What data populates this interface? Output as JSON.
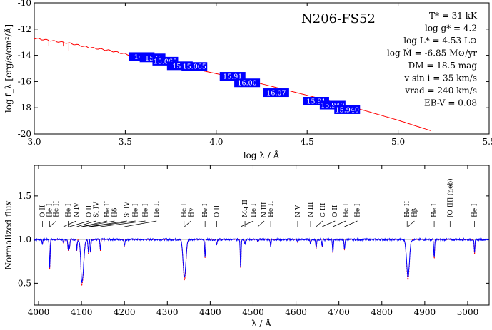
{
  "chart_data": [
    {
      "type": "line",
      "star_name": "N206-FS52",
      "xlabel": "log λ / Å",
      "ylabel": "log f_λ [erg/s/cm²/Å]",
      "xlim": [
        3.0,
        5.5
      ],
      "ylim": [
        -20,
        -10
      ],
      "x_ticks": [
        "3.0",
        "3.5",
        "4.0",
        "4.5",
        "5.0",
        "5.5"
      ],
      "y_ticks": [
        "-10",
        "-12",
        "-14",
        "-16",
        "-18",
        "-20"
      ],
      "parameters": [
        "T* = 31 kK",
        "log g* = 4.2",
        "log L* = 4.53 L⊙",
        "log Ṁ = -6.85 M⊙/yr",
        "DM = 18.5 mag",
        "v sin i = 35 km/s",
        "vrad = 240 km/s",
        "EB-V = 0.08"
      ],
      "sed_model": {
        "color": "#ff0000",
        "x": [
          3.0,
          3.1,
          3.2,
          3.3,
          3.4,
          3.5,
          3.6,
          3.7,
          3.8,
          3.9,
          4.0,
          4.1,
          4.2,
          4.3,
          4.4,
          4.5,
          4.6,
          4.7,
          4.8,
          4.9,
          5.0,
          5.1,
          5.18
        ],
        "y": [
          -12.7,
          -12.9,
          -13.1,
          -13.4,
          -13.6,
          -13.9,
          -14.2,
          -14.5,
          -14.8,
          -15.1,
          -15.4,
          -15.7,
          -16.0,
          -16.35,
          -16.7,
          -17.05,
          -17.4,
          -17.8,
          -18.15,
          -18.55,
          -18.95,
          -19.4,
          -19.75
        ]
      },
      "photometry": {
        "color": "#0000ff",
        "labels": [
          "14.8",
          "15.0",
          "15.065",
          "15.5",
          "15.065",
          "15.91",
          "16.00",
          "16.07",
          "15.91",
          "15.940",
          "15.940"
        ],
        "x": [
          3.59,
          3.65,
          3.72,
          3.8,
          3.88,
          4.09,
          4.17,
          4.33,
          4.55,
          4.64,
          4.72
        ],
        "y": [
          -14.1,
          -14.2,
          -14.45,
          -14.8,
          -14.85,
          -15.6,
          -16.1,
          -16.85,
          -17.5,
          -17.8,
          -18.15
        ]
      }
    },
    {
      "type": "line",
      "xlabel": "λ / Å",
      "ylabel": "Normalized flux",
      "xlim": [
        3990,
        5050
      ],
      "ylim": [
        0.25,
        1.85
      ],
      "x_ticks": [
        "4000",
        "4100",
        "4200",
        "4300",
        "4400",
        "4500",
        "4600",
        "4700",
        "4800",
        "4900",
        "5000"
      ],
      "y_ticks": [
        "0.5",
        "1.0",
        "1.5"
      ],
      "observed_color": "#0000ff",
      "model_color": "#ff0000",
      "continuum": 1.0,
      "lines": [
        {
          "label": "O II",
          "wl": 4009,
          "depth": 0.05
        },
        {
          "label": "He I",
          "wl": 4026,
          "depth": 0.32
        },
        {
          "label": "He II",
          "wl": 4026,
          "depth": 0.0
        },
        {
          "label": "He I",
          "wl": 4069,
          "depth": 0.12
        },
        {
          "label": "N IV",
          "wl": 4058,
          "depth": 0.05
        },
        {
          "label": "O II",
          "wl": 4072,
          "depth": 0.1
        },
        {
          "label": "Si IV",
          "wl": 4089,
          "depth": 0.12
        },
        {
          "label": "He II",
          "wl": 4100,
          "depth": 0.1
        },
        {
          "label": "Hδ",
          "wl": 4102,
          "depth": 0.45
        },
        {
          "label": "Si IV",
          "wl": 4116,
          "depth": 0.15
        },
        {
          "label": "He I",
          "wl": 4121,
          "depth": 0.15
        },
        {
          "label": "He I",
          "wl": 4144,
          "depth": 0.12
        },
        {
          "label": "He II",
          "wl": 4200,
          "depth": 0.08
        },
        {
          "label": "He II",
          "wl": 4339,
          "depth": 0.0
        },
        {
          "label": "Hγ",
          "wl": 4340,
          "depth": 0.43
        },
        {
          "label": "He I",
          "wl": 4388,
          "depth": 0.2
        },
        {
          "label": "O II",
          "wl": 4415,
          "depth": 0.06
        },
        {
          "label": "Mg II",
          "wl": 4481,
          "depth": 0.05
        },
        {
          "label": "He I",
          "wl": 4471,
          "depth": 0.33
        },
        {
          "label": "N III",
          "wl": 4511,
          "depth": 0.03
        },
        {
          "label": "He II",
          "wl": 4541,
          "depth": 0.08
        },
        {
          "label": "N V",
          "wl": 4604,
          "depth": 0.03
        },
        {
          "label": "N III",
          "wl": 4634,
          "depth": 0.06
        },
        {
          "label": "C III",
          "wl": 4647,
          "depth": 0.1
        },
        {
          "label": "O II",
          "wl": 4661,
          "depth": 0.08
        },
        {
          "label": "He II",
          "wl": 4686,
          "depth": 0.15
        },
        {
          "label": "He I",
          "wl": 4713,
          "depth": 0.12
        },
        {
          "label": "He II",
          "wl": 4859,
          "depth": 0.0
        },
        {
          "label": "Hβ",
          "wl": 4861,
          "depth": 0.43
        },
        {
          "label": "He I",
          "wl": 4922,
          "depth": 0.22
        },
        {
          "label": "[O III] (neb)",
          "wl": 4959,
          "depth": 0.0
        },
        {
          "label": "He I",
          "wl": 5016,
          "depth": 0.16
        }
      ]
    }
  ]
}
